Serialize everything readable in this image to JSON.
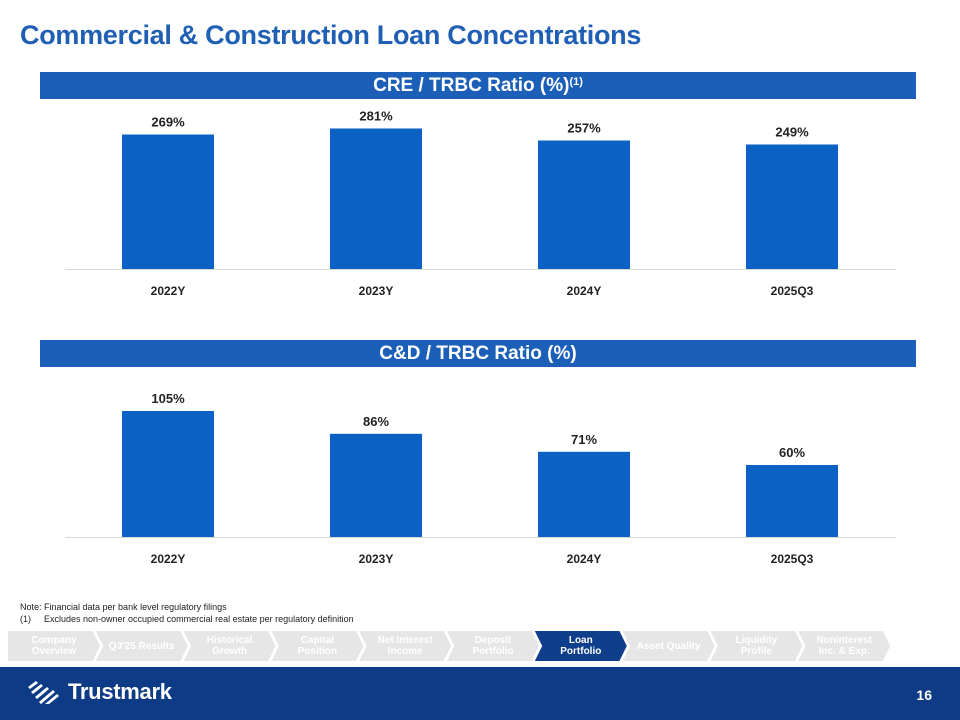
{
  "title": "Commercial & Construction Loan Concentrations",
  "chart_data": [
    {
      "type": "bar",
      "title": "CRE / TRBC Ratio (%)",
      "title_footnote": "(1)",
      "categories": [
        "2022Y",
        "2023Y",
        "2024Y",
        "2025Q3"
      ],
      "values": [
        269,
        281,
        257,
        249
      ],
      "labels": [
        "269%",
        "281%",
        "257%",
        "249%"
      ],
      "ylim": [
        0,
        300
      ],
      "xlabel": "",
      "ylabel": "",
      "bar_color": "#0b62c4"
    },
    {
      "type": "bar",
      "title": "C&D / TRBC Ratio (%)",
      "categories": [
        "2022Y",
        "2023Y",
        "2024Y",
        "2025Q3"
      ],
      "values": [
        105,
        86,
        71,
        60
      ],
      "labels": [
        "105%",
        "86%",
        "71%",
        "60%"
      ],
      "ylim": [
        0,
        125
      ],
      "xlabel": "",
      "ylabel": "",
      "bar_color": "#0b62c4"
    }
  ],
  "notes": {
    "note": "Note: Financial data per bank level regulatory filings",
    "fn_num": "(1)",
    "fn_text": "Excludes non-owner occupied commercial real estate per regulatory definition"
  },
  "nav": [
    {
      "label": "Company\nOverview",
      "active": false
    },
    {
      "label": "Q3'25 Results",
      "active": false
    },
    {
      "label": "Historical\nGrowth",
      "active": false
    },
    {
      "label": "Capital\nPosition",
      "active": false
    },
    {
      "label": "Net Interest\nIncome",
      "active": false
    },
    {
      "label": "Deposit\nPortfolio",
      "active": false
    },
    {
      "label": "Loan\nPortfolio",
      "active": true
    },
    {
      "label": "Asset Quality",
      "active": false
    },
    {
      "label": "Liquidity\nProfile",
      "active": false
    },
    {
      "label": "Noninterest\nInc. & Exp.",
      "active": false
    }
  ],
  "footer": {
    "logo_text": "Trustmark",
    "page_number": "16"
  }
}
